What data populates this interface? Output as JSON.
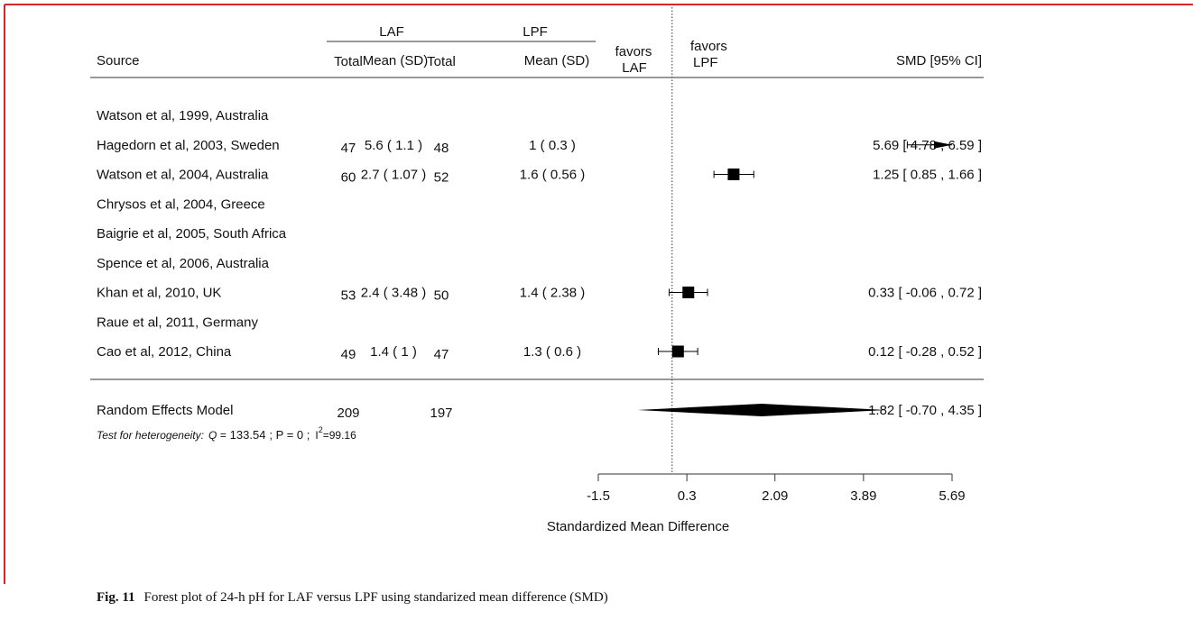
{
  "chart_data": {
    "type": "forest",
    "columns": {
      "source": "Source",
      "laf": "LAF",
      "lpf": "LPF",
      "total": "Total",
      "mean_sd": "Mean (SD)",
      "favors_left": [
        "favors",
        "LAF"
      ],
      "favors_right": [
        "favors",
        "LPF"
      ],
      "estimate": "SMD [95% CI]"
    },
    "studies": [
      {
        "name": "Watson et al, 1999, Australia"
      },
      {
        "name": "Hagedorn et al, 2003, Sweden",
        "laf_total": 47,
        "laf_mean_sd": "5.6 ( 1.1 )",
        "lpf_total": 48,
        "lpf_mean_sd": "1 ( 0.3 )",
        "smd": 5.69,
        "ci_lo": 4.78,
        "ci_hi": 6.59,
        "ci_label": "5.69 [ 4.78 , 6.59 ]"
      },
      {
        "name": "Watson et al, 2004, Australia",
        "laf_total": 60,
        "laf_mean_sd": "2.7 ( 1.07 )",
        "lpf_total": 52,
        "lpf_mean_sd": "1.6 ( 0.56 )",
        "smd": 1.25,
        "ci_lo": 0.85,
        "ci_hi": 1.66,
        "ci_label": "1.25 [ 0.85 , 1.66 ]"
      },
      {
        "name": "Chrysos et al, 2004, Greece"
      },
      {
        "name": "Baigrie et al, 2005, South Africa"
      },
      {
        "name": "Spence et al, 2006, Australia"
      },
      {
        "name": "Khan et al, 2010, UK",
        "laf_total": 53,
        "laf_mean_sd": "2.4 ( 3.48 )",
        "lpf_total": 50,
        "lpf_mean_sd": "1.4 ( 2.38 )",
        "smd": 0.33,
        "ci_lo": -0.06,
        "ci_hi": 0.72,
        "ci_label": "0.33 [ -0.06 , 0.72 ]"
      },
      {
        "name": "Raue et al, 2011, Germany"
      },
      {
        "name": "Cao et al, 2012, China",
        "laf_total": 49,
        "laf_mean_sd": "1.4 ( 1 )",
        "lpf_total": 47,
        "lpf_mean_sd": "1.3 ( 0.6 )",
        "smd": 0.12,
        "ci_lo": -0.28,
        "ci_hi": 0.52,
        "ci_label": "0.12 [ -0.28 , 0.52 ]"
      }
    ],
    "summary": {
      "name": "Random Effects Model",
      "laf_total": 209,
      "lpf_total": 197,
      "smd": 1.82,
      "ci_lo": -0.7,
      "ci_hi": 4.35,
      "ci_label": "1.82 [ -0.70 , 4.35 ]"
    },
    "heterogeneity": [
      "Test for heterogeneity:",
      "Q =",
      "133.54",
      "; P = 0 ;",
      "I",
      "2",
      "=99.16"
    ],
    "xlim": [
      -1.5,
      5.69
    ],
    "xticks": [
      -1.5,
      0.3,
      2.09,
      3.89,
      5.69
    ],
    "xlabel": "Standardized Mean Difference",
    "reference_line": 0,
    "color": "#000000"
  },
  "caption": {
    "label": "Fig. 11",
    "text": "Forest plot of 24-h pH for LAF versus LPF using standarized mean difference (SMD)"
  }
}
